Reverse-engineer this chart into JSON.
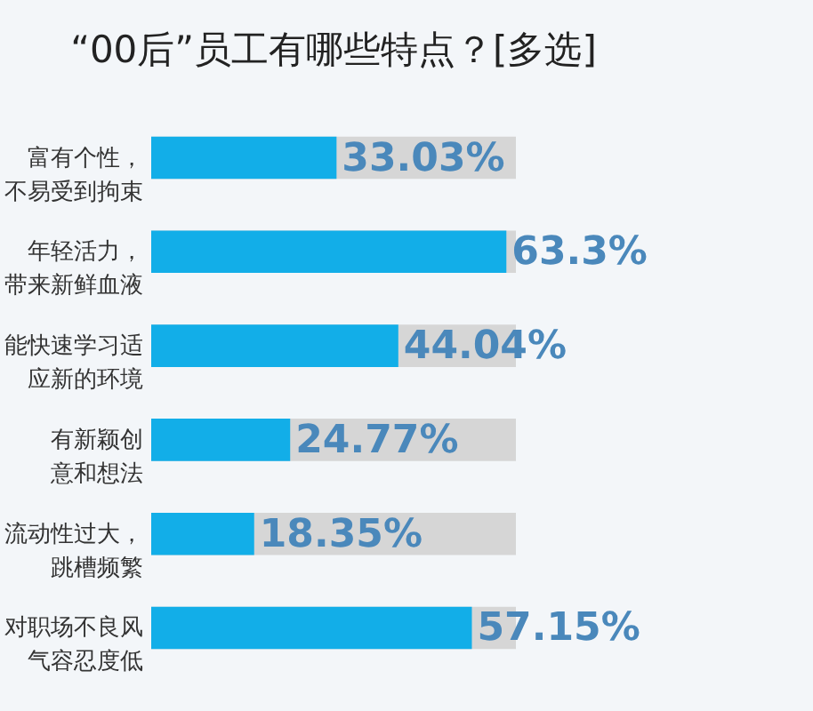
{
  "chart_data": {
    "type": "bar",
    "orientation": "horizontal",
    "title": "“00后”员工有哪些特点？[多选]",
    "categories": [
      "富有个性，不易受到拘束",
      "年轻活力，带来新鲜血液",
      "能快速学习适应新的环境",
      "有新颖创意和想法",
      "流动性过大，跳槽频繁",
      "对职场不良风气容忍度低"
    ],
    "values": [
      33.03,
      63.3,
      44.04,
      24.77,
      18.35,
      57.15
    ],
    "value_labels": [
      "33.03%",
      "63.3%",
      "44.04%",
      "24.77%",
      "18.35%",
      "57.15%"
    ],
    "color": "#12aee8",
    "grid": false
  }
}
